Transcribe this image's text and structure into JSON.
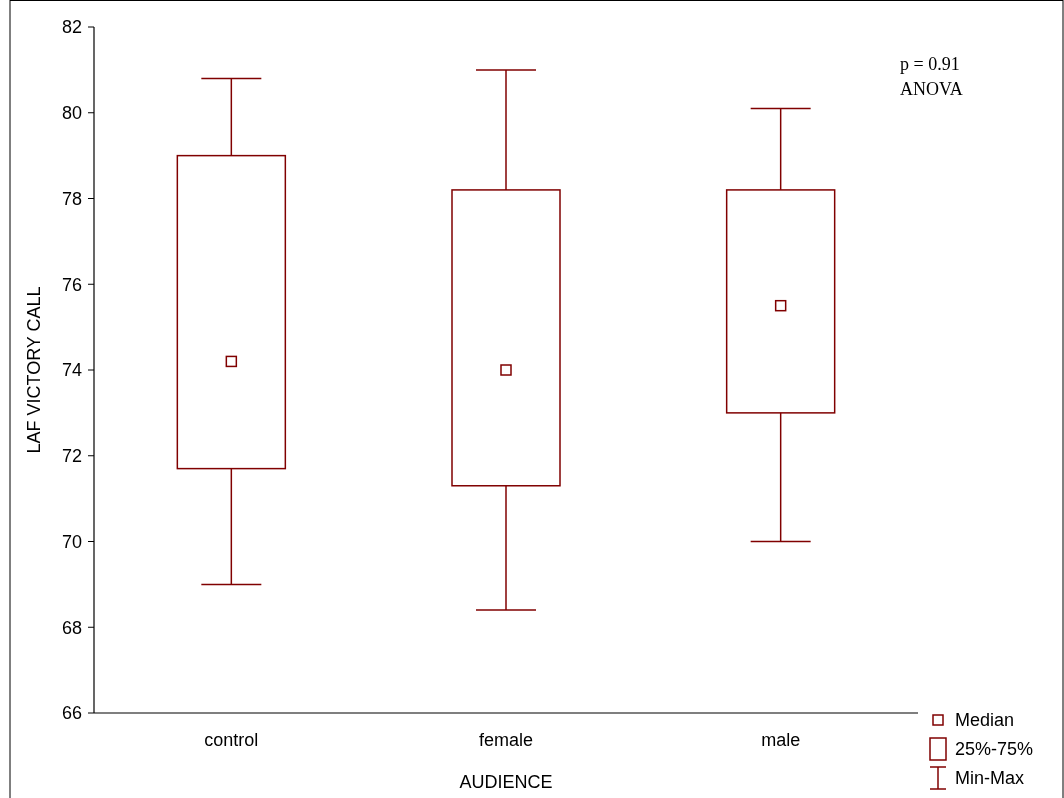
{
  "chart_data": {
    "type": "box",
    "xlabel": "AUDIENCE",
    "ylabel": "LAF VICTORY CALL",
    "categories": [
      "control",
      "female",
      "male"
    ],
    "color": "#800000",
    "boxes": [
      {
        "low": 69.0,
        "q1": 71.7,
        "median": 74.2,
        "q3": 79.0,
        "high": 80.8
      },
      {
        "low": 68.4,
        "q1": 71.3,
        "median": 74.0,
        "q3": 78.2,
        "high": 81.0
      },
      {
        "low": 70.0,
        "q1": 73.0,
        "median": 75.5,
        "q3": 78.2,
        "high": 80.1
      }
    ],
    "ylim": [
      66,
      82
    ],
    "yticks": [
      66,
      68,
      70,
      72,
      74,
      76,
      78,
      80,
      82
    ],
    "annotations": [
      "p = 0.91",
      "ANOVA",
      "Median",
      "25%-75%",
      "Min-Max"
    ]
  }
}
